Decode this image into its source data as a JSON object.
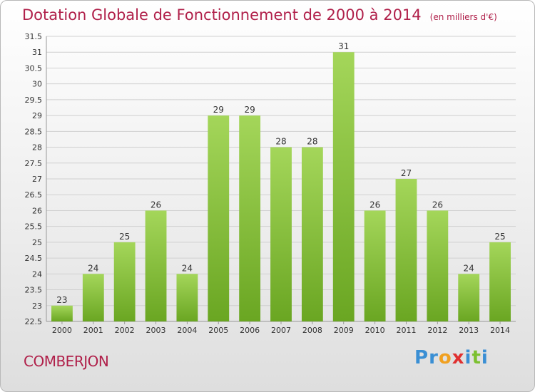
{
  "header": {
    "title": "Dotation Globale de Fonctionnement de 2000 à 2014",
    "unit": "(en milliers d'€)"
  },
  "footer": {
    "commune": "COMBERJON",
    "logo": "Proxiti",
    "logo_letters": [
      {
        "ch": "P",
        "color": "#3a8fd4"
      },
      {
        "ch": "r",
        "color": "#3a8fd4"
      },
      {
        "ch": "o",
        "color": "#f0a020"
      },
      {
        "ch": "x",
        "color": "#e03030"
      },
      {
        "ch": "i",
        "color": "#3a8fd4"
      },
      {
        "ch": "t",
        "color": "#7cc030"
      },
      {
        "ch": "i",
        "color": "#3a8fd4"
      }
    ]
  },
  "colors": {
    "title": "#b0204a",
    "bar_top": "#a4d65a",
    "bar_bottom": "#6aa622",
    "grid": "#d0d0d0"
  },
  "chart_data": {
    "type": "bar",
    "title": "Dotation Globale de Fonctionnement de 2000 à 2014",
    "subtitle": "(en milliers d'€)",
    "xlabel": "",
    "ylabel": "",
    "categories": [
      "2000",
      "2001",
      "2002",
      "2003",
      "2004",
      "2005",
      "2006",
      "2007",
      "2008",
      "2009",
      "2010",
      "2011",
      "2012",
      "2013",
      "2014"
    ],
    "values": [
      23,
      24,
      25,
      26,
      24,
      29,
      29,
      28,
      28,
      31,
      26,
      27,
      26,
      24,
      25
    ],
    "ylim": [
      22.5,
      31.5
    ],
    "yticks": [
      "22.5",
      "23",
      "23.5",
      "24",
      "24.5",
      "25",
      "25.5",
      "26",
      "26.5",
      "27",
      "27.5",
      "28",
      "28.5",
      "29",
      "29.5",
      "30",
      "30.5",
      "31",
      "31.5"
    ],
    "grid": true,
    "legend": "none"
  }
}
